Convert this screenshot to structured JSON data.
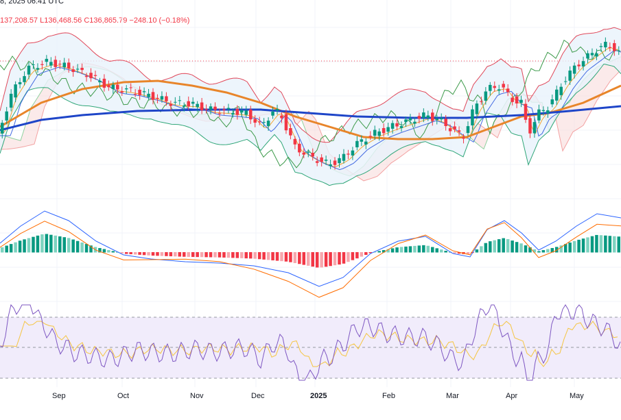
{
  "header": {
    "date_line": "8, 2025 06:41 UTC",
    "ohlc_line": "137,208.57  L136,468.56  C136,865.79  −248.10 (−0.18%)"
  },
  "x_axis": {
    "labels": [
      "Sep",
      "Oct",
      "Nov",
      "Dec",
      "2025",
      "Feb",
      "Mar",
      "Apr",
      "May"
    ]
  },
  "colors": {
    "up": "#089981",
    "down": "#f23645",
    "ma_long": "#1e45c8",
    "ma_mid": "#e8852a",
    "bb_upper": "#e0485a",
    "bb_lower": "#2fa678",
    "bb_fill": "#e8f3fb",
    "macd_line": "#2962ff",
    "signal_line": "#ff6d00",
    "rsi_line": "#7e57c2",
    "rsi_ma": "#f5c542",
    "rsi_band": "#f1ecfb"
  },
  "chart_data": {
    "type": "candlestick",
    "candle_count": 140,
    "panes": [
      "price",
      "macd",
      "rsi"
    ],
    "rsi_levels": [
      70,
      50,
      30
    ],
    "grid": true
  }
}
